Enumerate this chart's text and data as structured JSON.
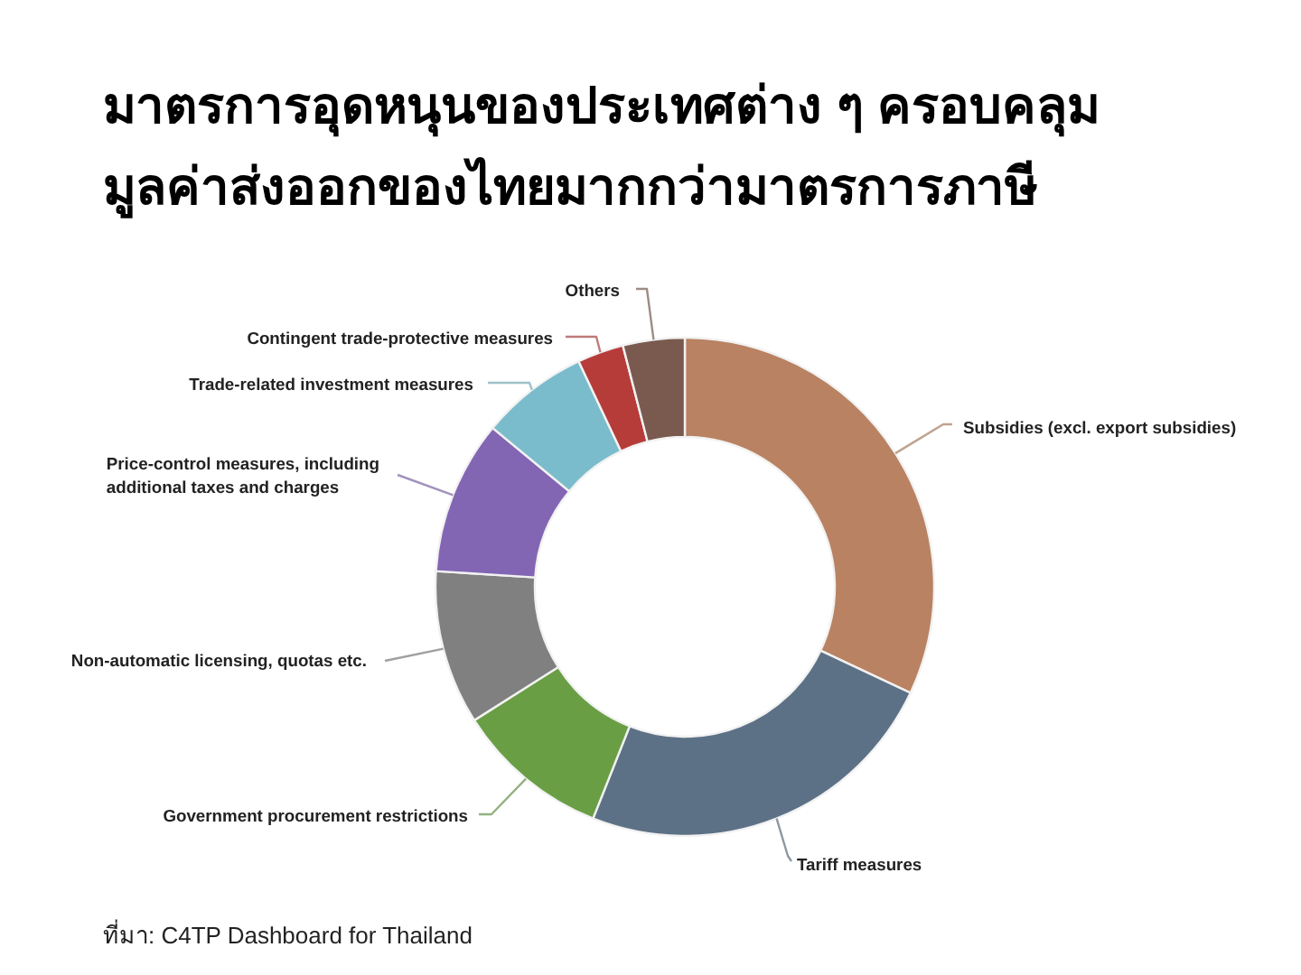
{
  "chart_data": {
    "type": "donut",
    "title": "มาตรการอุดหนุนของประเทศต่าง ๆ ครอบคลุม\nมูลค่าส่งออกของไทยมากกว่ามาตรการภาษี",
    "categories": [
      "Subsidies (excl. export subsidies)",
      "Tariff measures",
      "Government procurement restrictions",
      "Non-automatic licensing, quotas etc.",
      "Price-control measures, including additional taxes and charges",
      "Trade-related investment measures",
      "Contingent trade-protective measures",
      "Others"
    ],
    "values": [
      32,
      24,
      10,
      10,
      10,
      7,
      3,
      4
    ],
    "colors": [
      "#b98262",
      "#5d7186",
      "#6a9e45",
      "#808080",
      "#8366b3",
      "#7bbccc",
      "#b63c3a",
      "#7a5a4f"
    ],
    "annotations": [
      "ที่มา: C4TP Dashboard for Thailand"
    ]
  }
}
